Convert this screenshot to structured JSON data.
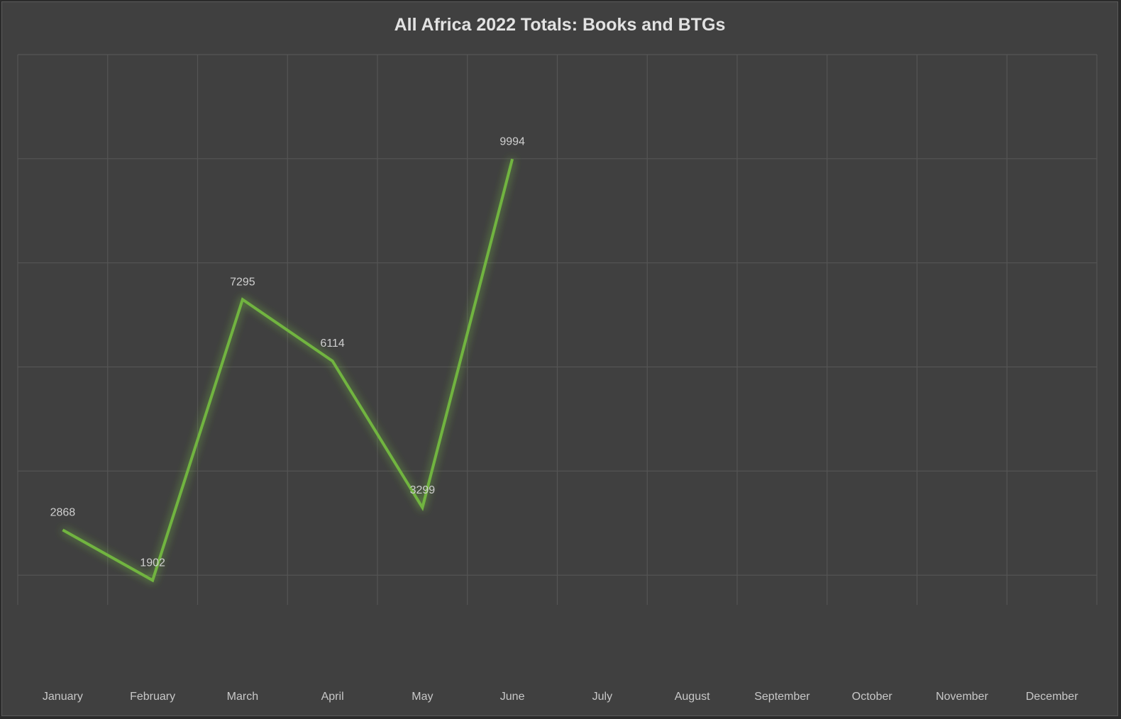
{
  "chart_data": {
    "type": "line",
    "title": "All Africa 2022 Totals: Books and BTGs",
    "categories": [
      "January",
      "February",
      "March",
      "April",
      "May",
      "June",
      "July",
      "August",
      "September",
      "October",
      "November",
      "December"
    ],
    "series": [
      {
        "values": [
          2868,
          1902,
          7295,
          6114,
          3299,
          9994,
          null,
          null,
          null,
          null,
          null,
          null
        ],
        "color": "#71b441"
      }
    ],
    "data_labels": [
      "2868",
      "1902",
      "7295",
      "6114",
      "3299",
      "9994"
    ],
    "ylim": [
      0,
      12000
    ],
    "y_gridline_step": 2000,
    "grid": true,
    "y_tick_labels_shown": false,
    "legend": "none",
    "colors": {
      "background": "#404040",
      "gridline": "#555555",
      "line": "#71b441",
      "text": "#c8c8c8"
    }
  }
}
